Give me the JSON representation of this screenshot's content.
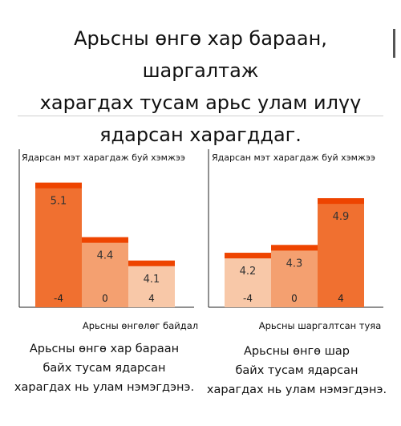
{
  "header": {
    "title_lines": [
      "Арьсны өнгө хар бараан, шаргалтаж",
      "харагдах тусам арьс улам илүү",
      "ядарсан харагддаг."
    ]
  },
  "chart_data": [
    {
      "type": "bar",
      "ylabel": "Ядарсан мэт харагдаж буй хэмжээ",
      "xlabel": "Арьсны өнгөлөг байдал",
      "categories": [
        "-4",
        "0",
        "4"
      ],
      "values": [
        5.1,
        4.4,
        4.1
      ],
      "ylim": [
        3.5,
        5.2
      ],
      "bar_colors": [
        "#f07030",
        "#f4a070",
        "#f8c8a8"
      ],
      "cap_color": "#ee4400"
    },
    {
      "type": "bar",
      "ylabel": "Ядарсан мэт харагдаж буй хэмжээ",
      "xlabel": "Арьсны шаргалтсан туяа",
      "categories": [
        "-4",
        "0",
        "4"
      ],
      "values": [
        4.2,
        4.3,
        4.9
      ],
      "ylim": [
        3.5,
        5.2
      ],
      "bar_colors": [
        "#f8c8a8",
        "#f4a070",
        "#f07030"
      ],
      "cap_color": "#ee4400"
    }
  ],
  "captions": [
    [
      "Арьсны өнгө хар бараан",
      "байх тусам ядарсан",
      "харагдах нь улам нэмэгдэнэ."
    ],
    [
      "Арьсны өнгө шар",
      "байх тусам ядарсан",
      "харагдах нь улам нэмэгдэнэ."
    ]
  ]
}
